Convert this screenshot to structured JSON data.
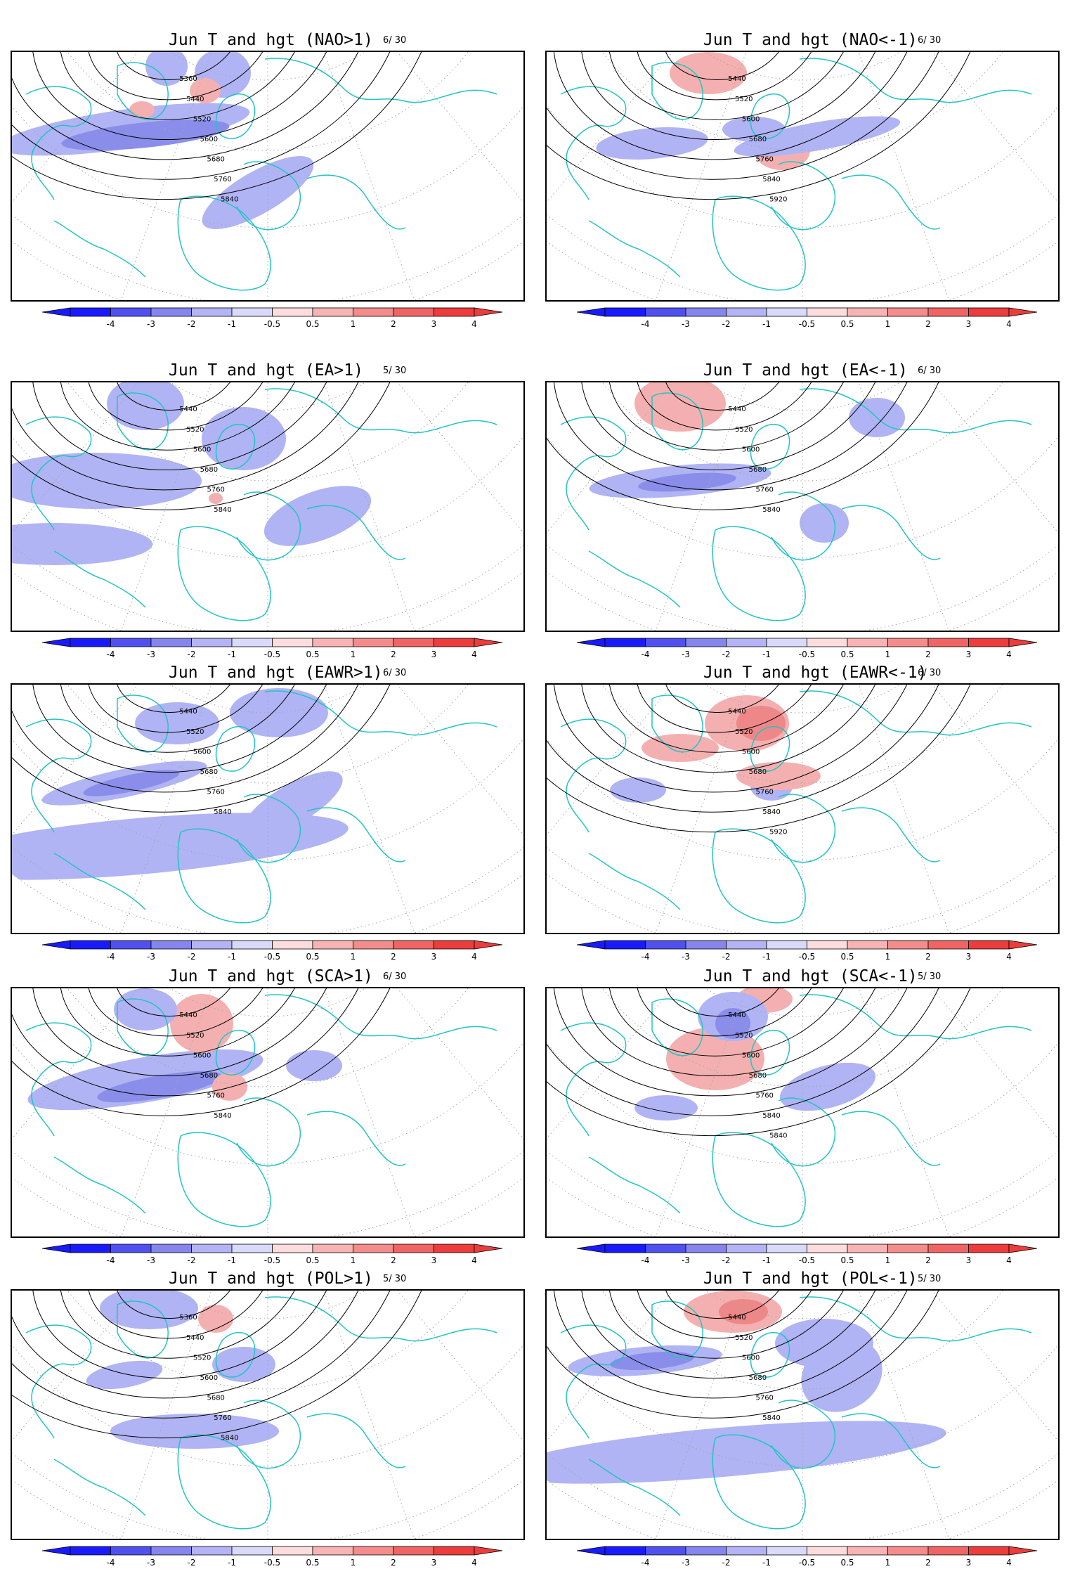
{
  "panels": [
    {
      "title": "Jun T and hgt (NAO>1)",
      "count": "6/ 30",
      "contour_labels": [
        "5360",
        "5440",
        "5520",
        "5600",
        "5680",
        "5760",
        "5840"
      ]
    },
    {
      "title": "Jun T and hgt (NAO<-1)",
      "count": "6/ 30",
      "contour_labels": [
        "5440",
        "5520",
        "5600",
        "5680",
        "5760",
        "5840",
        "5920"
      ]
    },
    {
      "title": "Jun T and hgt (EA>1)",
      "count": "5/ 30",
      "contour_labels": [
        "5440",
        "5520",
        "5600",
        "5680",
        "5760",
        "5840"
      ]
    },
    {
      "title": "Jun T and hgt (EA<-1)",
      "count": "6/ 30",
      "contour_labels": [
        "5440",
        "5520",
        "5600",
        "5680",
        "5760",
        "5840"
      ]
    },
    {
      "title": "Jun T and hgt (EAWR>1)",
      "count": "6/ 30",
      "contour_labels": [
        "5440",
        "5520",
        "5600",
        "5680",
        "5760",
        "5840"
      ]
    },
    {
      "title": "Jun T and hgt (EAWR<-1)",
      "count": "6/ 30",
      "contour_labels": [
        "5440",
        "5520",
        "5600",
        "5680",
        "5760",
        "5840",
        "5920"
      ]
    },
    {
      "title": "Jun T and hgt (SCA>1)",
      "count": "6/ 30",
      "contour_labels": [
        "5440",
        "5520",
        "5600",
        "5680",
        "5760",
        "5840"
      ]
    },
    {
      "title": "Jun T and hgt (SCA<-1)",
      "count": "5/ 30",
      "contour_labels": [
        "5440",
        "5520",
        "5600",
        "5680",
        "5760",
        "5840",
        "5840"
      ]
    },
    {
      "title": "Jun T and hgt (POL>1)",
      "count": "5/ 30",
      "contour_labels": [
        "5360",
        "5440",
        "5520",
        "5600",
        "5680",
        "5760",
        "5840"
      ]
    },
    {
      "title": "Jun T and hgt (POL<-1)",
      "count": "5/ 30",
      "contour_labels": [
        "5440",
        "5520",
        "5600",
        "5680",
        "5760",
        "5840"
      ]
    }
  ],
  "colorbar": {
    "labels": [
      "-4",
      "-3",
      "-2",
      "-1",
      "-0.5",
      "0.5",
      "1",
      "2",
      "3",
      "4"
    ],
    "colors": [
      "#1a1aff",
      "#5050f0",
      "#8585ee",
      "#b3b3f5",
      "#d9d9fa",
      "#ffffff",
      "#fcdcdc",
      "#f8b4b4",
      "#f48c8c",
      "#f06464",
      "#ec3c3c"
    ]
  },
  "map_colors": {
    "coast": "#22c4c4",
    "grid": "#a6a6a6",
    "contour": "#000000",
    "cool": "#b0b4f4",
    "cool_strong": "#8a8eea",
    "warm": "#f4b0b0",
    "warm_strong": "#ee8888"
  }
}
